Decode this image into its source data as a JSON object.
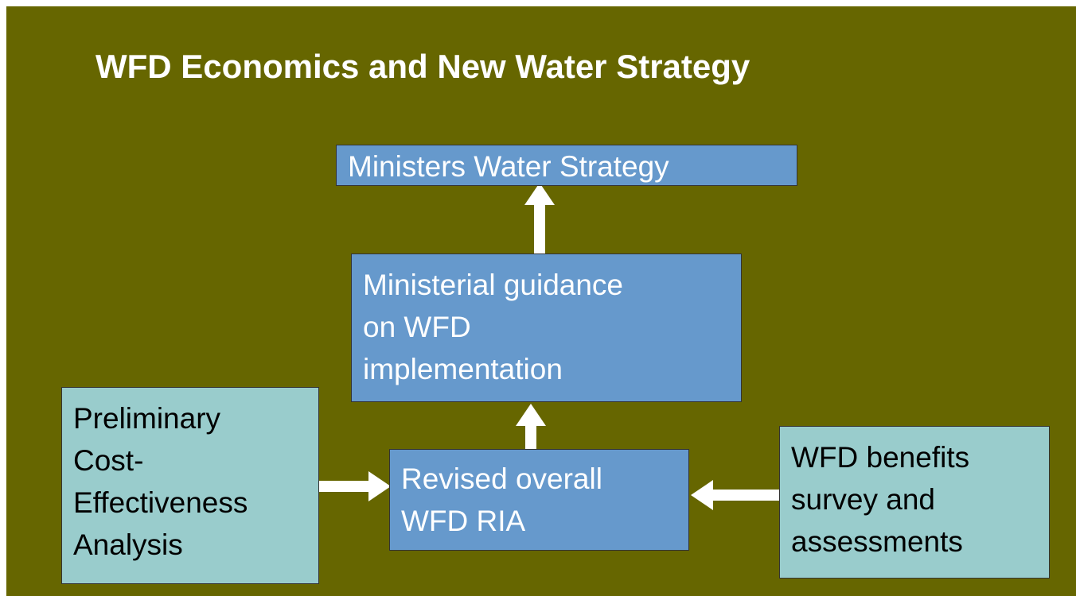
{
  "title": "WFD Economics and New Water Strategy",
  "nodes": [
    {
      "lines": [
        "Ministers Water Strategy"
      ]
    },
    {
      "lines": [
        "Ministerial guidance",
        "on WFD",
        "implementation"
      ]
    },
    {
      "lines": [
        "Revised overall",
        "WFD RIA"
      ]
    },
    {
      "lines": [
        "Preliminary",
        "Cost-",
        "Effectiveness",
        "Analysis"
      ]
    },
    {
      "lines": [
        "WFD benefits",
        "survey and",
        "assessments"
      ]
    }
  ]
}
